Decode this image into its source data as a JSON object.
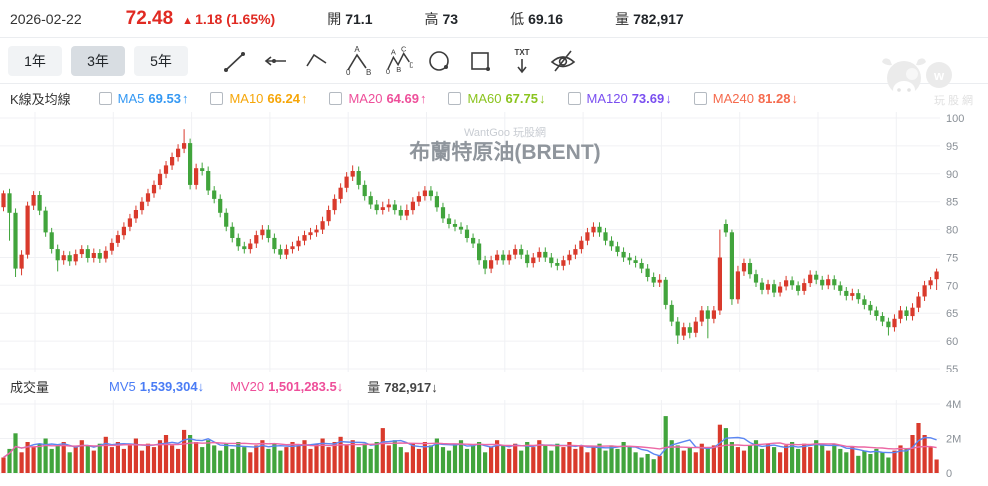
{
  "header": {
    "date": "2026-02-22",
    "price": "72.48",
    "change_arrow": "▲",
    "change_text": "1.18 (1.65%)",
    "stats": [
      {
        "label": "開",
        "value": "71.1"
      },
      {
        "label": "高",
        "value": "73"
      },
      {
        "label": "低",
        "value": "69.16"
      },
      {
        "label": "量",
        "value": "782,917"
      }
    ]
  },
  "ui_colors": {
    "price_up": "#e02a22",
    "text_dark": "#212529"
  },
  "toolbar": {
    "ranges": [
      {
        "label": "1年",
        "active": false
      },
      {
        "label": "3年",
        "active": true
      },
      {
        "label": "5年",
        "active": false
      }
    ],
    "tools": [
      "trend-line",
      "horizontal-arrow-line",
      "angle-line",
      "wave-0ab",
      "wave-0abcd",
      "circle",
      "rectangle",
      "text-note",
      "hide-drawings"
    ]
  },
  "indicators": {
    "title": "K線及均線",
    "items": [
      {
        "label": "MA5",
        "value": "69.53",
        "arrow": "↑",
        "color": "#3498f3",
        "checked": false
      },
      {
        "label": "MA10",
        "value": "66.24",
        "arrow": "↑",
        "color": "#f6a609",
        "checked": false
      },
      {
        "label": "MA20",
        "value": "64.69",
        "arrow": "↑",
        "color": "#ee4f9a",
        "checked": false
      },
      {
        "label": "MA60",
        "value": "67.75",
        "arrow": "↓",
        "color": "#8bc41f",
        "checked": false
      },
      {
        "label": "MA120",
        "value": "73.69",
        "arrow": "↓",
        "color": "#7a4ff0",
        "checked": false
      },
      {
        "label": "MA240",
        "value": "81.28",
        "arrow": "↓",
        "color": "#f56a4d",
        "checked": false
      }
    ]
  },
  "volume_row": {
    "title": "成交量",
    "mv5_label": "MV5",
    "mv5_value": "1,539,304",
    "mv5_arrow": "↓",
    "mv5_color": "#4a7cf5",
    "mv20_label": "MV20",
    "mv20_value": "1,501,283.5",
    "mv20_arrow": "↓",
    "mv20_color": "#ee4f9a",
    "vol_label": "量",
    "vol_value": "782,917",
    "vol_arrow": "↓"
  },
  "watermark": {
    "chart_small": "WantGoo 玩股網",
    "chart_title": "布蘭特原油(BRENT)",
    "logo_badge": "w",
    "logo_text": "玩股網"
  },
  "chart_data": {
    "type": "candlestick+volume",
    "title": "布蘭特原油(BRENT)",
    "period": "3年 weekly",
    "price_axis": {
      "position": "right",
      "min": 55,
      "max": 100,
      "ticks": [
        55,
        60,
        65,
        70,
        75,
        80,
        85,
        90,
        95,
        100
      ]
    },
    "volume_axis": {
      "ticks": [
        "0",
        "2M",
        "4M"
      ],
      "max_m": 4
    },
    "grid": true,
    "legend": "none",
    "colors": {
      "up": "#d93a2c",
      "down": "#41a43c",
      "mv5_line": "#5b86f2",
      "mv20_line": "#ec67a4",
      "grid": "#f0f1f4",
      "axis_text": "#8a9097"
    },
    "candles": [
      [
        84.0,
        87.0,
        83.3,
        86.5
      ],
      [
        86.5,
        87.3,
        78.0,
        83.0
      ],
      [
        83.0,
        83.8,
        71.5,
        73.0
      ],
      [
        73.0,
        76.3,
        71.8,
        75.5
      ],
      [
        75.5,
        85.0,
        74.8,
        84.3
      ],
      [
        84.3,
        86.9,
        83.5,
        86.2
      ],
      [
        86.2,
        86.9,
        82.6,
        83.4
      ],
      [
        83.4,
        84.1,
        78.7,
        79.5
      ],
      [
        79.5,
        80.3,
        75.7,
        76.5
      ],
      [
        76.5,
        77.3,
        72.5,
        74.5
      ],
      [
        74.5,
        76.2,
        73.7,
        75.4
      ],
      [
        75.4,
        76.1,
        73.5,
        74.3
      ],
      [
        74.3,
        76.4,
        73.6,
        75.6
      ],
      [
        75.6,
        77.2,
        74.9,
        76.5
      ],
      [
        76.5,
        77.2,
        74.1,
        74.9
      ],
      [
        74.9,
        76.6,
        74.1,
        75.8
      ],
      [
        75.8,
        76.5,
        74.0,
        74.8
      ],
      [
        74.8,
        77.0,
        74.1,
        76.2
      ],
      [
        76.2,
        78.4,
        75.5,
        77.6
      ],
      [
        77.6,
        79.8,
        76.9,
        79.0
      ],
      [
        79.0,
        81.3,
        78.2,
        80.5
      ],
      [
        80.5,
        82.8,
        79.7,
        82.0
      ],
      [
        82.0,
        84.3,
        81.2,
        83.5
      ],
      [
        83.5,
        85.8,
        82.7,
        85.0
      ],
      [
        85.0,
        87.3,
        84.2,
        86.5
      ],
      [
        86.5,
        88.8,
        85.7,
        88.0
      ],
      [
        88.0,
        90.8,
        87.2,
        90.0
      ],
      [
        90.0,
        92.3,
        89.2,
        91.5
      ],
      [
        91.5,
        93.8,
        90.7,
        93.0
      ],
      [
        93.0,
        95.3,
        92.2,
        94.5
      ],
      [
        94.5,
        98.0,
        93.7,
        95.5
      ],
      [
        95.5,
        96.3,
        87.2,
        88.0
      ],
      [
        88.0,
        91.8,
        87.2,
        91.0
      ],
      [
        91.0,
        92.0,
        89.7,
        90.5
      ],
      [
        90.5,
        91.3,
        86.2,
        87.0
      ],
      [
        87.0,
        87.8,
        84.7,
        85.5
      ],
      [
        85.5,
        86.3,
        82.2,
        83.0
      ],
      [
        83.0,
        83.8,
        79.7,
        80.5
      ],
      [
        80.5,
        81.3,
        77.7,
        78.5
      ],
      [
        78.5,
        79.3,
        76.2,
        77.0
      ],
      [
        77.0,
        77.8,
        75.7,
        76.5
      ],
      [
        76.5,
        78.3,
        75.7,
        77.5
      ],
      [
        77.5,
        79.8,
        76.7,
        79.0
      ],
      [
        79.0,
        80.8,
        78.2,
        80.0
      ],
      [
        80.0,
        80.8,
        77.7,
        78.5
      ],
      [
        78.5,
        79.3,
        75.7,
        76.5
      ],
      [
        76.5,
        77.3,
        74.7,
        75.5
      ],
      [
        75.5,
        77.3,
        74.7,
        76.5
      ],
      [
        76.5,
        77.8,
        75.7,
        77.0
      ],
      [
        77.0,
        78.8,
        76.2,
        78.0
      ],
      [
        78.0,
        79.8,
        77.2,
        79.0
      ],
      [
        79.0,
        80.3,
        78.2,
        79.5
      ],
      [
        79.5,
        80.8,
        78.7,
        80.0
      ],
      [
        80.0,
        82.3,
        79.2,
        81.5
      ],
      [
        81.5,
        84.3,
        80.7,
        83.5
      ],
      [
        83.5,
        86.3,
        82.7,
        85.5
      ],
      [
        85.5,
        88.3,
        84.7,
        87.5
      ],
      [
        87.5,
        90.3,
        86.7,
        89.5
      ],
      [
        89.5,
        91.5,
        88.7,
        90.5
      ],
      [
        90.5,
        91.3,
        87.2,
        88.0
      ],
      [
        88.0,
        88.8,
        85.2,
        86.0
      ],
      [
        86.0,
        86.8,
        83.7,
        84.5
      ],
      [
        84.5,
        85.3,
        82.7,
        83.5
      ],
      [
        83.5,
        85.0,
        82.7,
        84.0
      ],
      [
        84.0,
        85.5,
        83.2,
        84.5
      ],
      [
        84.5,
        85.3,
        82.7,
        83.5
      ],
      [
        83.5,
        84.3,
        81.7,
        82.5
      ],
      [
        82.5,
        84.5,
        81.7,
        83.5
      ],
      [
        83.5,
        85.8,
        82.7,
        85.0
      ],
      [
        85.0,
        86.8,
        84.2,
        86.0
      ],
      [
        86.0,
        87.8,
        85.2,
        87.0
      ],
      [
        87.0,
        87.8,
        85.2,
        86.0
      ],
      [
        86.0,
        86.8,
        83.2,
        84.0
      ],
      [
        84.0,
        84.8,
        81.2,
        82.0
      ],
      [
        82.0,
        82.8,
        80.2,
        81.0
      ],
      [
        81.0,
        81.8,
        79.7,
        80.5
      ],
      [
        80.5,
        81.3,
        79.2,
        80.0
      ],
      [
        80.0,
        80.8,
        77.7,
        78.5
      ],
      [
        78.5,
        79.3,
        76.7,
        77.5
      ],
      [
        77.5,
        78.3,
        73.7,
        74.5
      ],
      [
        74.5,
        75.3,
        72.0,
        73.0
      ],
      [
        73.0,
        75.3,
        72.2,
        74.5
      ],
      [
        74.5,
        76.3,
        73.7,
        75.5
      ],
      [
        75.5,
        76.3,
        73.7,
        74.5
      ],
      [
        74.5,
        76.3,
        73.7,
        75.5
      ],
      [
        75.5,
        77.3,
        74.7,
        76.5
      ],
      [
        76.5,
        77.3,
        74.7,
        75.5
      ],
      [
        75.5,
        76.3,
        73.2,
        74.0
      ],
      [
        74.0,
        75.8,
        73.2,
        75.0
      ],
      [
        75.0,
        76.8,
        74.2,
        76.0
      ],
      [
        76.0,
        76.8,
        74.2,
        75.0
      ],
      [
        75.0,
        75.8,
        73.2,
        74.0
      ],
      [
        74.0,
        74.8,
        72.7,
        73.5
      ],
      [
        73.5,
        75.3,
        72.7,
        74.5
      ],
      [
        74.5,
        76.3,
        73.7,
        75.5
      ],
      [
        75.5,
        77.3,
        74.7,
        76.5
      ],
      [
        76.5,
        78.8,
        75.7,
        78.0
      ],
      [
        78.0,
        80.3,
        77.2,
        79.5
      ],
      [
        79.5,
        81.3,
        78.7,
        80.5
      ],
      [
        80.5,
        81.3,
        78.7,
        79.5
      ],
      [
        79.5,
        80.3,
        77.2,
        78.0
      ],
      [
        78.0,
        78.8,
        76.2,
        77.0
      ],
      [
        77.0,
        77.8,
        75.2,
        76.0
      ],
      [
        76.0,
        76.8,
        74.2,
        75.0
      ],
      [
        75.0,
        75.8,
        73.7,
        74.5
      ],
      [
        74.5,
        75.3,
        73.2,
        74.0
      ],
      [
        74.0,
        74.8,
        72.2,
        73.0
      ],
      [
        73.0,
        73.8,
        70.7,
        71.5
      ],
      [
        71.5,
        72.3,
        69.7,
        70.5
      ],
      [
        70.5,
        72.0,
        69.7,
        71.0
      ],
      [
        71.0,
        71.5,
        65.7,
        66.5
      ],
      [
        66.5,
        67.3,
        62.7,
        63.5
      ],
      [
        63.5,
        64.3,
        59.5,
        61.0
      ],
      [
        61.0,
        63.3,
        60.2,
        62.5
      ],
      [
        62.5,
        63.3,
        60.5,
        61.5
      ],
      [
        61.5,
        64.3,
        60.7,
        63.5
      ],
      [
        63.5,
        66.3,
        62.7,
        65.5
      ],
      [
        65.5,
        66.3,
        60.5,
        64.0
      ],
      [
        64.0,
        66.3,
        63.2,
        65.5
      ],
      [
        65.5,
        80.0,
        64.7,
        75.0
      ],
      [
        81.0,
        81.8,
        78.7,
        79.5
      ],
      [
        79.5,
        80.0,
        66.5,
        67.5
      ],
      [
        67.5,
        73.5,
        66.7,
        72.5
      ],
      [
        72.5,
        74.8,
        71.7,
        74.0
      ],
      [
        74.0,
        74.8,
        71.2,
        72.0
      ],
      [
        72.0,
        72.8,
        69.7,
        70.5
      ],
      [
        70.5,
        71.3,
        68.4,
        69.2
      ],
      [
        69.2,
        71.0,
        68.4,
        70.2
      ],
      [
        70.2,
        71.0,
        67.9,
        68.7
      ],
      [
        68.7,
        70.6,
        68.0,
        69.8
      ],
      [
        69.8,
        71.7,
        69.1,
        70.9
      ],
      [
        70.9,
        71.6,
        69.2,
        70.0
      ],
      [
        70.0,
        70.7,
        68.2,
        69.0
      ],
      [
        69.0,
        71.2,
        68.3,
        70.4
      ],
      [
        70.4,
        72.7,
        69.7,
        71.9
      ],
      [
        71.9,
        72.6,
        70.2,
        71.0
      ],
      [
        71.0,
        71.7,
        69.2,
        70.0
      ],
      [
        70.0,
        71.9,
        69.3,
        71.1
      ],
      [
        71.1,
        71.8,
        69.2,
        70.0
      ],
      [
        70.0,
        70.7,
        68.2,
        69.0
      ],
      [
        69.0,
        69.7,
        67.3,
        68.1
      ],
      [
        68.1,
        69.4,
        67.3,
        68.6
      ],
      [
        68.6,
        69.3,
        66.7,
        67.5
      ],
      [
        67.5,
        68.2,
        65.7,
        66.5
      ],
      [
        66.5,
        67.2,
        64.7,
        65.5
      ],
      [
        65.5,
        66.2,
        63.7,
        64.5
      ],
      [
        64.5,
        65.2,
        62.7,
        63.5
      ],
      [
        63.5,
        64.2,
        61.0,
        62.5
      ],
      [
        62.5,
        64.8,
        61.7,
        64.0
      ],
      [
        64.0,
        66.3,
        63.2,
        65.5
      ],
      [
        65.5,
        66.2,
        63.7,
        64.5
      ],
      [
        64.5,
        66.8,
        63.7,
        66.0
      ],
      [
        66.0,
        68.8,
        65.2,
        68.0
      ],
      [
        68.0,
        70.8,
        67.2,
        70.0
      ],
      [
        70.0,
        71.5,
        69.3,
        70.9
      ],
      [
        71.1,
        73.0,
        69.16,
        72.48
      ]
    ],
    "volumes_m": [
      0.9,
      1.4,
      2.3,
      1.2,
      1.8,
      1.5,
      1.7,
      2.0,
      1.4,
      1.6,
      1.8,
      1.2,
      1.5,
      1.9,
      1.6,
      1.3,
      1.7,
      2.1,
      1.5,
      1.8,
      1.4,
      1.6,
      2.0,
      1.3,
      1.7,
      1.5,
      1.9,
      2.2,
      1.6,
      1.4,
      2.5,
      2.2,
      1.8,
      1.5,
      1.9,
      1.6,
      1.3,
      1.7,
      1.4,
      1.8,
      1.5,
      1.2,
      1.6,
      1.9,
      1.4,
      1.7,
      1.3,
      1.5,
      1.8,
      1.6,
      1.9,
      1.4,
      1.7,
      2.0,
      1.5,
      1.8,
      2.1,
      1.6,
      1.9,
      1.5,
      1.7,
      1.4,
      1.8,
      2.6,
      1.6,
      1.9,
      1.5,
      1.2,
      1.7,
      1.4,
      1.8,
      1.6,
      2.0,
      1.5,
      1.3,
      1.7,
      1.9,
      1.4,
      1.6,
      1.8,
      1.2,
      1.5,
      1.9,
      1.6,
      1.4,
      1.7,
      1.3,
      1.8,
      1.5,
      1.9,
      1.6,
      1.3,
      1.7,
      1.5,
      1.8,
      1.4,
      1.6,
      1.2,
      1.5,
      1.7,
      1.3,
      1.6,
      1.4,
      1.8,
      1.5,
      1.2,
      0.9,
      1.1,
      0.8,
      1.0,
      3.3,
      1.9,
      1.6,
      1.3,
      1.5,
      1.2,
      1.7,
      1.4,
      1.6,
      2.8,
      2.6,
      1.8,
      1.5,
      1.3,
      1.6,
      1.9,
      1.4,
      1.7,
      1.5,
      1.2,
      1.6,
      1.8,
      1.4,
      1.7,
      1.5,
      1.9,
      1.6,
      1.3,
      1.7,
      1.4,
      1.2,
      1.5,
      1.0,
      1.3,
      1.1,
      1.4,
      1.2,
      0.9,
      1.3,
      1.6,
      1.4,
      2.2,
      2.9,
      2.2,
      1.5,
      0.78
    ]
  }
}
